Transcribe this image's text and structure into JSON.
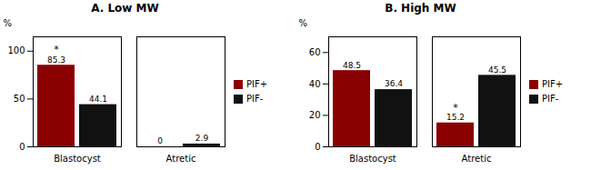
{
  "chart_data": [
    {
      "type": "bar",
      "title": "A. Low MW",
      "ylabel": "%",
      "categories": [
        "Blastocyst",
        "Atretic"
      ],
      "series": [
        {
          "name": "PIF+",
          "color": "#8B0000",
          "values": [
            85.3,
            0
          ]
        },
        {
          "name": "PIF-",
          "color": "#111111",
          "values": [
            44.1,
            2.9
          ]
        }
      ],
      "annotations": [
        {
          "text": "*",
          "series": "PIF+",
          "category": "Blastocyst"
        }
      ],
      "ylim": [
        0,
        115
      ],
      "yticks": [
        0,
        50,
        100
      ],
      "data_labels": true,
      "grid": false,
      "legend": "right"
    },
    {
      "type": "bar",
      "title": "B. High MW",
      "ylabel": "%",
      "categories": [
        "Blastocyst",
        "Atretic"
      ],
      "series": [
        {
          "name": "PIF+",
          "color": "#8B0000",
          "values": [
            48.5,
            15.2
          ]
        },
        {
          "name": "PIF-",
          "color": "#111111",
          "values": [
            36.4,
            45.5
          ]
        }
      ],
      "annotations": [
        {
          "text": "*",
          "series": "PIF+",
          "category": "Atretic"
        }
      ],
      "ylim": [
        0,
        70
      ],
      "yticks": [
        0,
        20,
        40,
        60
      ],
      "data_labels": true,
      "grid": false,
      "legend": "right"
    }
  ]
}
